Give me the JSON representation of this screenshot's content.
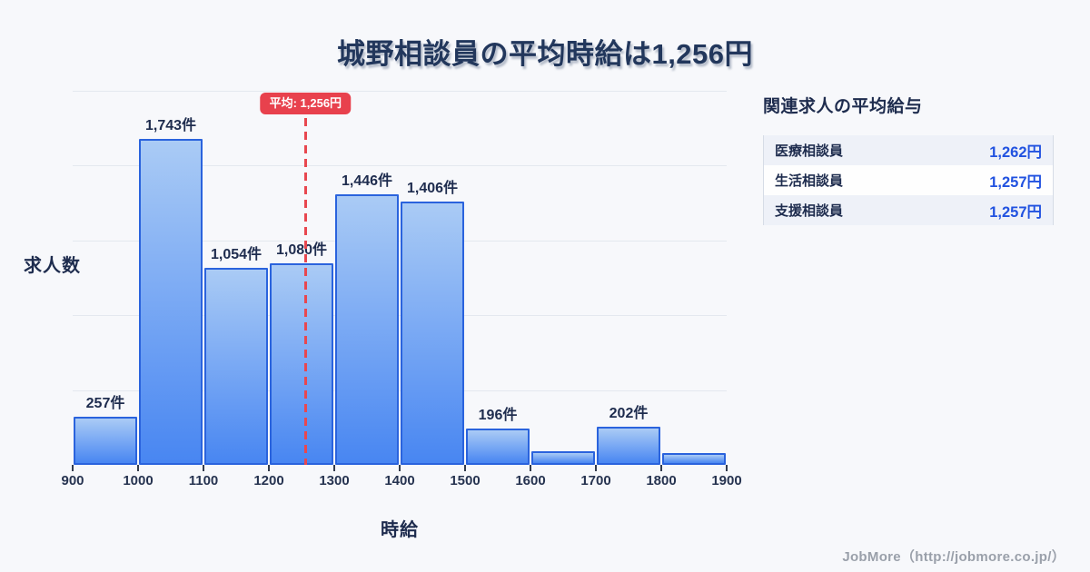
{
  "title": "城野相談員の平均時給は1,256円",
  "chart_data": {
    "type": "bar",
    "subtype": "histogram",
    "bin_edges": [
      900,
      1000,
      1100,
      1200,
      1300,
      1400,
      1500,
      1600,
      1700,
      1800,
      1900
    ],
    "x_tick_labels": [
      "900",
      "1000",
      "1100",
      "1200",
      "1300",
      "1400",
      "1500",
      "1600",
      "1700",
      "1800",
      "1900"
    ],
    "values": [
      257,
      1743,
      1054,
      1080,
      1446,
      1406,
      196,
      72,
      202,
      64
    ],
    "bar_labels": [
      "257件",
      "1,743件",
      "1,054件",
      "1,080件",
      "1,446件",
      "1,406件",
      "196件",
      "",
      "202件",
      ""
    ],
    "xlabel": "時給",
    "ylabel": "求人数",
    "ylim": [
      0,
      2000
    ],
    "gridline_step": 400,
    "grid": true,
    "average": {
      "value": 1256,
      "label": "平均: 1,256円"
    },
    "colors": {
      "bar_top": "#aacbf5",
      "bar_bottom": "#4886f2",
      "bar_border": "#2a63dd",
      "average_line": "#e8474f",
      "average_badge_bg": "#e8414d",
      "gridline": "#e4e8ef"
    }
  },
  "side_panel": {
    "title": "関連求人の平均給与",
    "rows": [
      {
        "name": "医療相談員",
        "value": "1,262円"
      },
      {
        "name": "生活相談員",
        "value": "1,257円"
      },
      {
        "name": "支援相談員",
        "value": "1,257円"
      }
    ]
  },
  "footer": {
    "credit": "JobMore（http://jobmore.co.jp/）"
  }
}
